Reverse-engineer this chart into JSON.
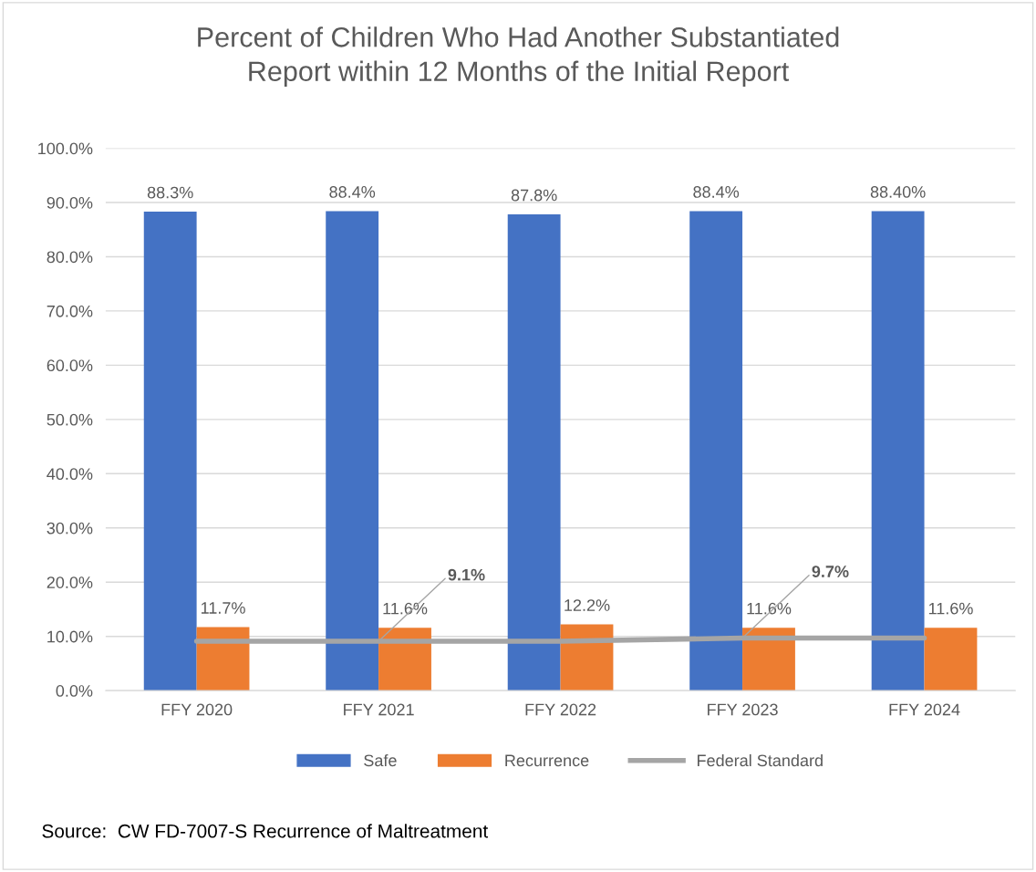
{
  "chart_data": {
    "type": "bar",
    "title": "Percent of Children Who Had Another Substantiated\nReport within 12 Months of the Initial Report",
    "categories": [
      "FFY 2020",
      "FFY 2021",
      "FFY 2022",
      "FFY 2023",
      "FFY 2024"
    ],
    "series": [
      {
        "name": "Safe",
        "color": "#4472c4",
        "values": [
          88.3,
          88.4,
          87.8,
          88.4,
          88.4
        ],
        "value_labels": [
          "88.3%",
          "88.4%",
          "87.8%",
          "88.4%",
          "88.40%"
        ]
      },
      {
        "name": "Recurrence",
        "color": "#ed7d31",
        "values": [
          11.7,
          11.6,
          12.2,
          11.6,
          11.6
        ],
        "value_labels": [
          "11.7%",
          "11.6%",
          "12.2%",
          "11.6%",
          "11.6%"
        ]
      },
      {
        "name": "Federal Standard",
        "type": "line",
        "color": "#a5a5a5",
        "values": [
          9.1,
          9.1,
          9.1,
          9.7,
          9.7
        ]
      }
    ],
    "ylim": [
      0,
      100
    ],
    "yticks": [
      {
        "value": 0,
        "label": "0.0%"
      },
      {
        "value": 10,
        "label": "10.0%"
      },
      {
        "value": 20,
        "label": "20.0%"
      },
      {
        "value": 30,
        "label": "30.0%"
      },
      {
        "value": 40,
        "label": "40.0%"
      },
      {
        "value": 50,
        "label": "50.0%"
      },
      {
        "value": 60,
        "label": "60.0%"
      },
      {
        "value": 70,
        "label": "70.0%"
      },
      {
        "value": 80,
        "label": "80.0%"
      },
      {
        "value": 90,
        "label": "90.0%"
      },
      {
        "value": 100,
        "label": "100.0%"
      }
    ],
    "grid": "y",
    "legend": "bottom",
    "annotations": [
      {
        "text": "9.1%",
        "x": "FFY 2021",
        "y": 9.1
      },
      {
        "text": "9.7%",
        "x": "FFY 2023",
        "y": 9.7
      },
      "Source:  CW FD-7007-S Recurrence of Maltreatment"
    ]
  }
}
